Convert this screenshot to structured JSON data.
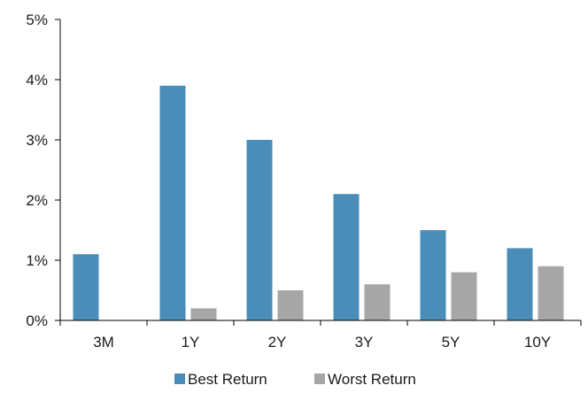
{
  "chart_data": {
    "type": "bar",
    "title": "",
    "xlabel": "",
    "ylabel": "",
    "categories": [
      "3M",
      "1Y",
      "2Y",
      "3Y",
      "5Y",
      "10Y"
    ],
    "series": [
      {
        "name": "Best Return",
        "color": "#4A8DB8",
        "values": [
          1.1,
          3.9,
          3.0,
          2.1,
          1.5,
          1.2
        ]
      },
      {
        "name": "Worst Return",
        "color": "#A6A6A6",
        "values": [
          0.0,
          0.2,
          0.5,
          0.6,
          0.8,
          0.9
        ]
      }
    ],
    "ylim": [
      0,
      5
    ],
    "yticks": [
      0,
      1,
      2,
      3,
      4,
      5
    ],
    "ytick_labels": [
      "0%",
      "1%",
      "2%",
      "3%",
      "4%",
      "5%"
    ],
    "grid": false,
    "legend_position": "bottom-center"
  }
}
